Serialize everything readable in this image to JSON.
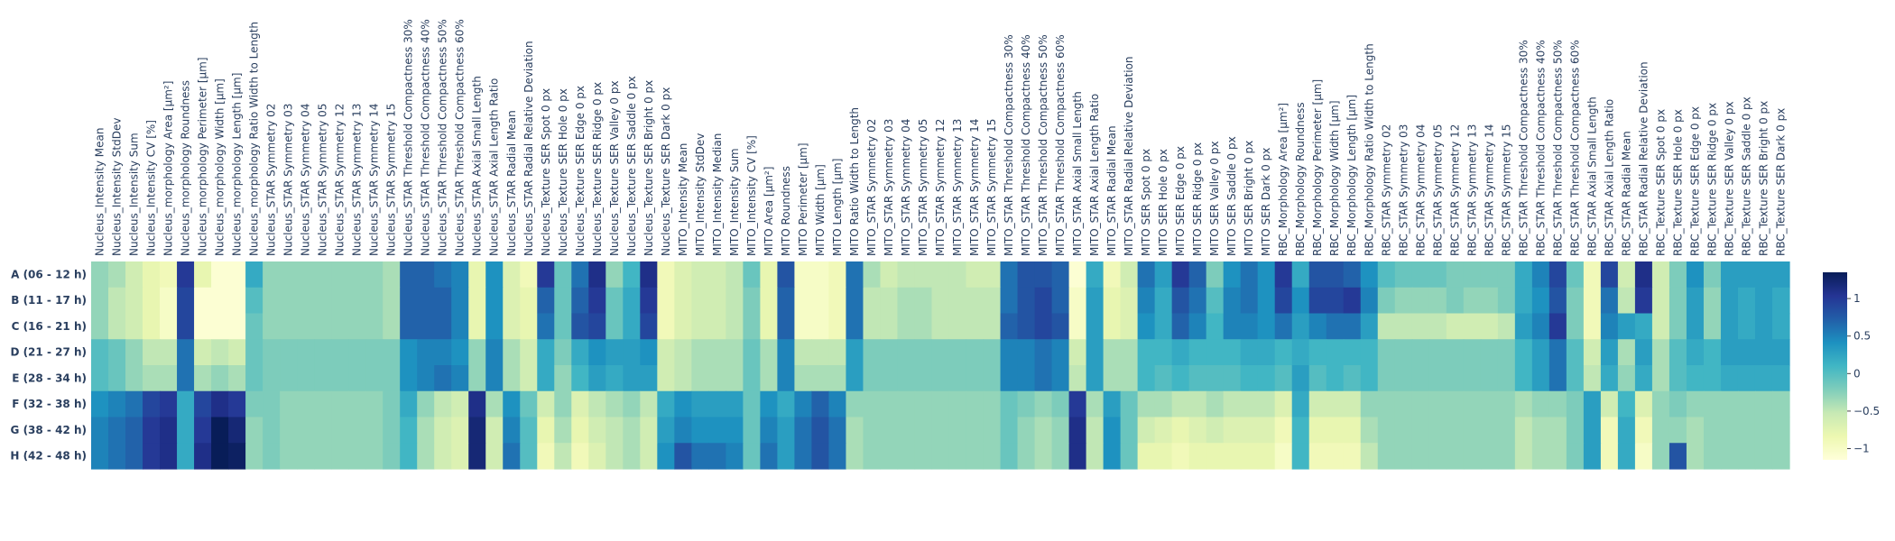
{
  "chart_data": {
    "type": "heatmap",
    "title": "",
    "xlabel": "",
    "ylabel": "",
    "x": [
      "Nucleus_Intensity Mean",
      "Nucleus_Intensity StdDev",
      "Nucleus_Intensity Sum",
      "Nucleus_Intensity CV [%]",
      "Nucleus_morphology Area [µm²]",
      "Nucleus_morphology Roundness",
      "Nucleus_morphology Perimeter [µm]",
      "Nucleus_morphology Width [µm]",
      "Nucleus_morphology Length [µm]",
      "Nucleus_morphology Ratio Width to Length",
      "Nucleus_STAR Symmetry 02",
      "Nucleus_STAR Symmetry 03",
      "Nucleus_STAR Symmetry 04",
      "Nucleus_STAR Symmetry 05",
      "Nucleus_STAR Symmetry 12",
      "Nucleus_STAR Symmetry 13",
      "Nucleus_STAR Symmetry 14",
      "Nucleus_STAR Symmetry 15",
      "Nucleus_STAR Threshold Compactness 30%",
      "Nucleus_STAR Threshold Compactness 40%",
      "Nucleus_STAR Threshold Compactness 50%",
      "Nucleus_STAR Threshold Compactness 60%",
      "Nucleus_STAR Axial Small Length",
      "Nucleus_STAR Axial Length Ratio",
      "Nucleus_STAR Radial Mean",
      "Nucleus_STAR Radial Relative Deviation",
      "Nucleus_Texture SER Spot 0 px",
      "Nucleus_Texture SER Hole 0 px",
      "Nucleus_Texture SER Edge 0 px",
      "Nucleus_Texture SER Ridge 0 px",
      "Nucleus_Texture SER Valley 0 px",
      "Nucleus_Texture SER Saddle 0 px",
      "Nucleus_Texture SER Bright 0 px",
      "Nucleus_Texture SER Dark 0 px",
      "MITO_Intensity Mean",
      "MITO_Intensity StdDev",
      "MITO_Intensity Median",
      "MITO_Intensity Sum",
      "MITO_Intensity CV [%]",
      "MITO Area [µm²]",
      "MITO Roundness",
      "MITO Perimeter [µm]",
      "MITO Width [µm]",
      "MITO Length [µm]",
      "MITO Ratio Width to Length",
      "MITO_STAR Symmetry 02",
      "MITO_STAR Symmetry 03",
      "MITO_STAR Symmetry 04",
      "MITO_STAR Symmetry 05",
      "MITO_STAR Symmetry 12",
      "MITO_STAR Symmetry 13",
      "MITO_STAR Symmetry 14",
      "MITO_STAR Symmetry 15",
      "MITO_STAR Threshold Compactness 30%",
      "MITO_STAR Threshold Compactness 40%",
      "MITO_STAR Threshold Compactness 50%",
      "MITO_STAR Threshold Compactness 60%",
      "MITO_STAR Axial Small Length",
      "MITO_STAR Axial Length Ratio",
      "MITO_STAR Radial Mean",
      "MITO_STAR Radial Relative Deviation",
      "MITO SER Spot 0 px",
      "MITO SER Hole 0 px",
      "MITO SER Edge 0 px",
      "MITO SER Ridge 0 px",
      "MITO SER Valley 0 px",
      "MITO SER Saddle 0 px",
      "MITO SER Bright 0 px",
      "MITO SER Dark 0 px",
      "RBC_Morphology Area [µm²]",
      "RBC_Morphology Roundness",
      "RBC_Morphology Perimeter [µm]",
      "RBC_Morphology Width [µm]",
      "RBC_Morphology Length [µm]",
      "RBC_Morphology Ratio Width to Length",
      "RBC_STAR Symmetry 02",
      "RBC_STAR Symmetry 03",
      "RBC_STAR Symmetry 04",
      "RBC_STAR Symmetry 05",
      "RBC_STAR Symmetry 12",
      "RBC_STAR Symmetry 13",
      "RBC_STAR Symmetry 14",
      "RBC_STAR Symmetry 15",
      "RBC_STAR Threshold Compactness 30%",
      "RBC_STAR Threshold Compactness 40%",
      "RBC_STAR Threshold Compactness 50%",
      "RBC_STAR Threshold Compactness 60%",
      "RBC_STAR Axial Small Length",
      "RBC_STAR Axial Length Ratio",
      "RBC_STAR Radial Mean",
      "RBC_STAR Radial Relative Deviation",
      "RBC_Texture SER Spot 0 px",
      "RBC_Texture SER Hole 0 px",
      "RBC_Texture SER Edge 0 px",
      "RBC_Texture SER Ridge 0 px",
      "RBC_Texture SER Valley 0 px",
      "RBC_Texture SER Saddle 0 px",
      "RBC_Texture SER Bright 0 px",
      "RBC_Texture SER Dark 0 px"
    ],
    "y": [
      "A (06 - 12 h)",
      "B (11 - 17 h)",
      "C (16 - 21 h)",
      "D (21 - 27 h)",
      "E (28 - 34 h)",
      "F (32 - 38 h)",
      "G (38 - 42 h)",
      "H (42 - 48 h)"
    ],
    "z": [
      [
        -0.3,
        -0.4,
        -0.6,
        -0.8,
        -0.9,
        1.0,
        -0.8,
        -1.1,
        -1.1,
        0.2,
        -0.3,
        -0.3,
        -0.3,
        -0.3,
        -0.3,
        -0.3,
        -0.3,
        -0.4,
        0.7,
        0.7,
        0.6,
        0.5,
        -0.8,
        0.4,
        -0.7,
        -0.9,
        1.0,
        -0.1,
        0.6,
        1.1,
        -0.3,
        0.1,
        1.1,
        -0.9,
        -0.7,
        -0.6,
        -0.6,
        -0.5,
        -0.1,
        -0.8,
        0.8,
        -1.0,
        -1.0,
        -0.9,
        0.6,
        -0.4,
        -0.6,
        -0.5,
        -0.5,
        -0.5,
        -0.5,
        -0.6,
        -0.6,
        0.6,
        0.8,
        0.8,
        0.7,
        -1.1,
        0.2,
        -0.9,
        -0.6,
        0.6,
        0.3,
        1.0,
        0.7,
        -0.2,
        0.4,
        0.6,
        0.4,
        1.0,
        0.2,
        0.8,
        0.8,
        0.7,
        0.4,
        0.0,
        -0.1,
        -0.1,
        -0.1,
        -0.2,
        -0.2,
        -0.2,
        -0.2,
        0.2,
        0.5,
        0.9,
        -0.1,
        -0.9,
        0.9,
        -0.6,
        1.1,
        -0.6,
        -0.2,
        0.4,
        -0.2,
        0.3,
        0.3,
        0.3,
        0.3
      ],
      [
        -0.3,
        -0.5,
        -0.6,
        -0.8,
        -1.0,
        0.9,
        -1.1,
        -1.1,
        -1.1,
        0.0,
        -0.3,
        -0.3,
        -0.3,
        -0.3,
        -0.3,
        -0.3,
        -0.3,
        -0.4,
        0.7,
        0.7,
        0.7,
        0.5,
        -0.8,
        0.4,
        -0.7,
        -0.8,
        0.7,
        -0.1,
        0.7,
        1.0,
        -0.1,
        0.2,
        1.0,
        -0.9,
        -0.7,
        -0.6,
        -0.6,
        -0.5,
        -0.2,
        -0.8,
        0.7,
        -1.0,
        -1.0,
        -0.9,
        0.6,
        -0.5,
        -0.5,
        -0.4,
        -0.4,
        -0.5,
        -0.5,
        -0.5,
        -0.5,
        0.6,
        0.8,
        0.9,
        0.7,
        -1.0,
        0.3,
        -0.8,
        -0.7,
        0.5,
        0.2,
        0.8,
        0.6,
        0.0,
        0.5,
        0.6,
        0.4,
        0.9,
        0.4,
        0.9,
        0.9,
        1.0,
        0.5,
        -0.2,
        -0.3,
        -0.3,
        -0.3,
        -0.2,
        -0.3,
        -0.3,
        -0.2,
        0.2,
        0.4,
        0.8,
        -0.2,
        -0.9,
        0.6,
        -0.5,
        1.0,
        -0.6,
        -0.2,
        0.3,
        -0.3,
        0.3,
        0.2,
        0.3,
        0.2
      ],
      [
        -0.3,
        -0.5,
        -0.6,
        -0.8,
        -1.0,
        0.9,
        -1.1,
        -1.1,
        -1.1,
        -0.1,
        -0.3,
        -0.3,
        -0.3,
        -0.3,
        -0.3,
        -0.3,
        -0.3,
        -0.4,
        0.7,
        0.7,
        0.7,
        0.5,
        -0.8,
        0.4,
        -0.7,
        -0.8,
        0.6,
        -0.1,
        0.8,
        0.9,
        -0.1,
        0.2,
        0.9,
        -0.9,
        -0.7,
        -0.6,
        -0.6,
        -0.5,
        -0.2,
        -0.8,
        0.7,
        -1.0,
        -1.0,
        -0.9,
        0.6,
        -0.5,
        -0.5,
        -0.4,
        -0.4,
        -0.5,
        -0.5,
        -0.5,
        -0.5,
        0.7,
        0.8,
        0.9,
        0.8,
        -1.0,
        0.3,
        -0.8,
        -0.7,
        0.4,
        0.2,
        0.7,
        0.5,
        0.1,
        0.5,
        0.5,
        0.4,
        0.6,
        0.3,
        0.5,
        0.6,
        0.6,
        0.3,
        -0.5,
        -0.5,
        -0.5,
        -0.5,
        -0.6,
        -0.6,
        -0.6,
        -0.5,
        0.3,
        0.5,
        1.0,
        -0.2,
        -0.9,
        0.5,
        0.3,
        0.2,
        -0.6,
        -0.2,
        0.3,
        -0.3,
        0.3,
        0.2,
        0.3,
        0.2
      ],
      [
        0.0,
        -0.1,
        -0.3,
        -0.5,
        -0.5,
        0.6,
        -0.6,
        -0.5,
        -0.6,
        -0.1,
        -0.2,
        -0.2,
        -0.2,
        -0.2,
        -0.2,
        -0.2,
        -0.2,
        -0.2,
        0.4,
        0.5,
        0.5,
        0.4,
        -0.3,
        0.5,
        -0.4,
        -0.6,
        0.2,
        -0.2,
        0.2,
        0.4,
        0.3,
        0.3,
        0.4,
        -0.6,
        -0.5,
        -0.4,
        -0.4,
        -0.4,
        -0.1,
        -0.4,
        0.5,
        -0.5,
        -0.5,
        -0.5,
        0.3,
        -0.2,
        -0.2,
        -0.2,
        -0.2,
        -0.2,
        -0.2,
        -0.2,
        -0.2,
        0.5,
        0.5,
        0.6,
        0.5,
        -0.6,
        0.3,
        -0.4,
        -0.4,
        0.1,
        0.1,
        0.2,
        0.1,
        0.1,
        0.1,
        0.2,
        0.2,
        0.1,
        0.2,
        0.1,
        0.1,
        0.1,
        0.1,
        -0.2,
        -0.2,
        -0.2,
        -0.2,
        -0.2,
        -0.2,
        -0.2,
        -0.2,
        0.1,
        0.3,
        0.6,
        0.0,
        -0.6,
        0.3,
        -0.4,
        0.3,
        -0.4,
        0.0,
        0.2,
        0.1,
        0.3,
        0.3,
        0.3,
        0.3
      ],
      [
        0.0,
        -0.1,
        -0.3,
        -0.4,
        -0.4,
        0.6,
        -0.4,
        -0.3,
        -0.4,
        -0.1,
        -0.2,
        -0.2,
        -0.2,
        -0.2,
        -0.2,
        -0.2,
        -0.2,
        -0.2,
        0.4,
        0.5,
        0.6,
        0.5,
        -0.3,
        0.5,
        -0.4,
        -0.6,
        0.2,
        -0.3,
        0.1,
        0.3,
        0.2,
        0.3,
        0.3,
        -0.6,
        -0.5,
        -0.4,
        -0.4,
        -0.4,
        -0.1,
        -0.4,
        0.5,
        -0.4,
        -0.4,
        -0.4,
        0.3,
        -0.2,
        -0.2,
        -0.2,
        -0.2,
        -0.2,
        -0.2,
        -0.2,
        -0.2,
        0.5,
        0.5,
        0.6,
        0.5,
        -0.5,
        0.3,
        -0.4,
        -0.4,
        0.1,
        0.0,
        0.1,
        0.0,
        0.0,
        0.0,
        0.1,
        0.1,
        0.0,
        0.3,
        0.0,
        0.1,
        0.0,
        0.1,
        -0.2,
        -0.2,
        -0.2,
        -0.2,
        -0.2,
        -0.2,
        -0.2,
        -0.2,
        0.1,
        0.3,
        0.6,
        0.0,
        -0.5,
        0.2,
        -0.3,
        0.2,
        -0.4,
        0.0,
        0.1,
        0.1,
        0.2,
        0.2,
        0.2,
        0.2
      ],
      [
        0.4,
        0.5,
        0.6,
        0.9,
        1.0,
        0.2,
        0.9,
        1.1,
        1.0,
        -0.2,
        -0.2,
        -0.3,
        -0.3,
        -0.3,
        -0.3,
        -0.3,
        -0.3,
        -0.2,
        0.2,
        -0.3,
        -0.5,
        -0.6,
        1.1,
        -0.4,
        0.4,
        -0.1,
        -0.6,
        -0.3,
        -0.7,
        -0.5,
        -0.4,
        -0.3,
        -0.5,
        0.2,
        0.4,
        0.3,
        0.3,
        0.3,
        -0.1,
        0.4,
        0.2,
        0.5,
        0.7,
        0.5,
        -0.3,
        -0.3,
        -0.3,
        -0.3,
        -0.3,
        -0.3,
        -0.3,
        -0.3,
        -0.3,
        -0.1,
        -0.2,
        -0.3,
        -0.2,
        1.0,
        -0.4,
        0.3,
        -0.1,
        -0.4,
        -0.4,
        -0.5,
        -0.5,
        -0.4,
        -0.5,
        -0.5,
        -0.5,
        -0.7,
        0.2,
        -0.6,
        -0.6,
        -0.6,
        -0.3,
        -0.3,
        -0.3,
        -0.3,
        -0.3,
        -0.3,
        -0.3,
        -0.3,
        -0.3,
        -0.4,
        -0.3,
        -0.3,
        -0.2,
        0.3,
        -0.6,
        0.1,
        -0.7,
        -0.3,
        -0.2,
        -0.3,
        -0.3,
        -0.3,
        -0.3,
        -0.3,
        -0.3
      ],
      [
        0.5,
        0.6,
        0.7,
        1.0,
        1.1,
        0.2,
        1.0,
        1.4,
        1.2,
        -0.3,
        -0.2,
        -0.3,
        -0.3,
        -0.3,
        -0.3,
        -0.3,
        -0.3,
        -0.2,
        0.1,
        -0.4,
        -0.6,
        -0.7,
        1.2,
        -0.6,
        0.5,
        0.0,
        -0.8,
        -0.4,
        -0.8,
        -0.6,
        -0.5,
        -0.4,
        -0.6,
        0.3,
        0.5,
        0.4,
        0.4,
        0.4,
        -0.1,
        0.5,
        0.3,
        0.6,
        0.8,
        0.6,
        -0.4,
        -0.3,
        -0.3,
        -0.3,
        -0.3,
        -0.3,
        -0.3,
        -0.3,
        -0.3,
        -0.1,
        -0.3,
        -0.4,
        -0.3,
        1.1,
        -0.5,
        0.4,
        -0.1,
        -0.6,
        -0.7,
        -0.8,
        -0.7,
        -0.6,
        -0.7,
        -0.7,
        -0.7,
        -0.9,
        0.1,
        -0.8,
        -0.8,
        -0.8,
        -0.4,
        -0.3,
        -0.3,
        -0.3,
        -0.3,
        -0.3,
        -0.3,
        -0.3,
        -0.3,
        -0.5,
        -0.4,
        -0.4,
        -0.2,
        0.3,
        -0.9,
        0.2,
        -0.9,
        -0.3,
        -0.3,
        -0.4,
        -0.3,
        -0.3,
        -0.3,
        -0.3,
        -0.3
      ],
      [
        0.5,
        0.6,
        0.7,
        1.0,
        1.1,
        0.2,
        1.1,
        1.4,
        1.3,
        -0.3,
        -0.2,
        -0.3,
        -0.3,
        -0.3,
        -0.3,
        -0.3,
        -0.3,
        -0.2,
        0.1,
        -0.4,
        -0.6,
        -0.7,
        1.2,
        -0.6,
        0.6,
        0.0,
        -0.9,
        -0.5,
        -0.9,
        -0.7,
        -0.5,
        -0.4,
        -0.6,
        0.4,
        0.8,
        0.6,
        0.6,
        0.5,
        -0.1,
        0.6,
        0.3,
        0.6,
        0.8,
        0.6,
        -0.4,
        -0.3,
        -0.3,
        -0.3,
        -0.3,
        -0.3,
        -0.3,
        -0.3,
        -0.3,
        -0.1,
        -0.3,
        -0.4,
        -0.3,
        1.1,
        -0.5,
        0.4,
        -0.1,
        -0.8,
        -0.8,
        -0.9,
        -0.8,
        -0.8,
        -0.8,
        -0.8,
        -0.8,
        -1.0,
        0.1,
        -0.9,
        -0.9,
        -0.9,
        -0.5,
        -0.3,
        -0.3,
        -0.3,
        -0.3,
        -0.3,
        -0.3,
        -0.3,
        -0.3,
        -0.5,
        -0.4,
        -0.4,
        -0.2,
        0.3,
        -0.9,
        0.2,
        -1.0,
        -0.3,
        0.8,
        -0.4,
        -0.3,
        -0.3,
        -0.3,
        -0.3,
        -0.3
      ]
    ],
    "zmin": -1.15,
    "zmax": 1.35,
    "colorscale": "YlGnBu",
    "colorbar_ticks": [
      1,
      0.5,
      0,
      -0.5,
      -1
    ],
    "colorbar_tick_labels": [
      "1",
      "0.5",
      "0",
      "−0.5",
      "−1"
    ]
  }
}
